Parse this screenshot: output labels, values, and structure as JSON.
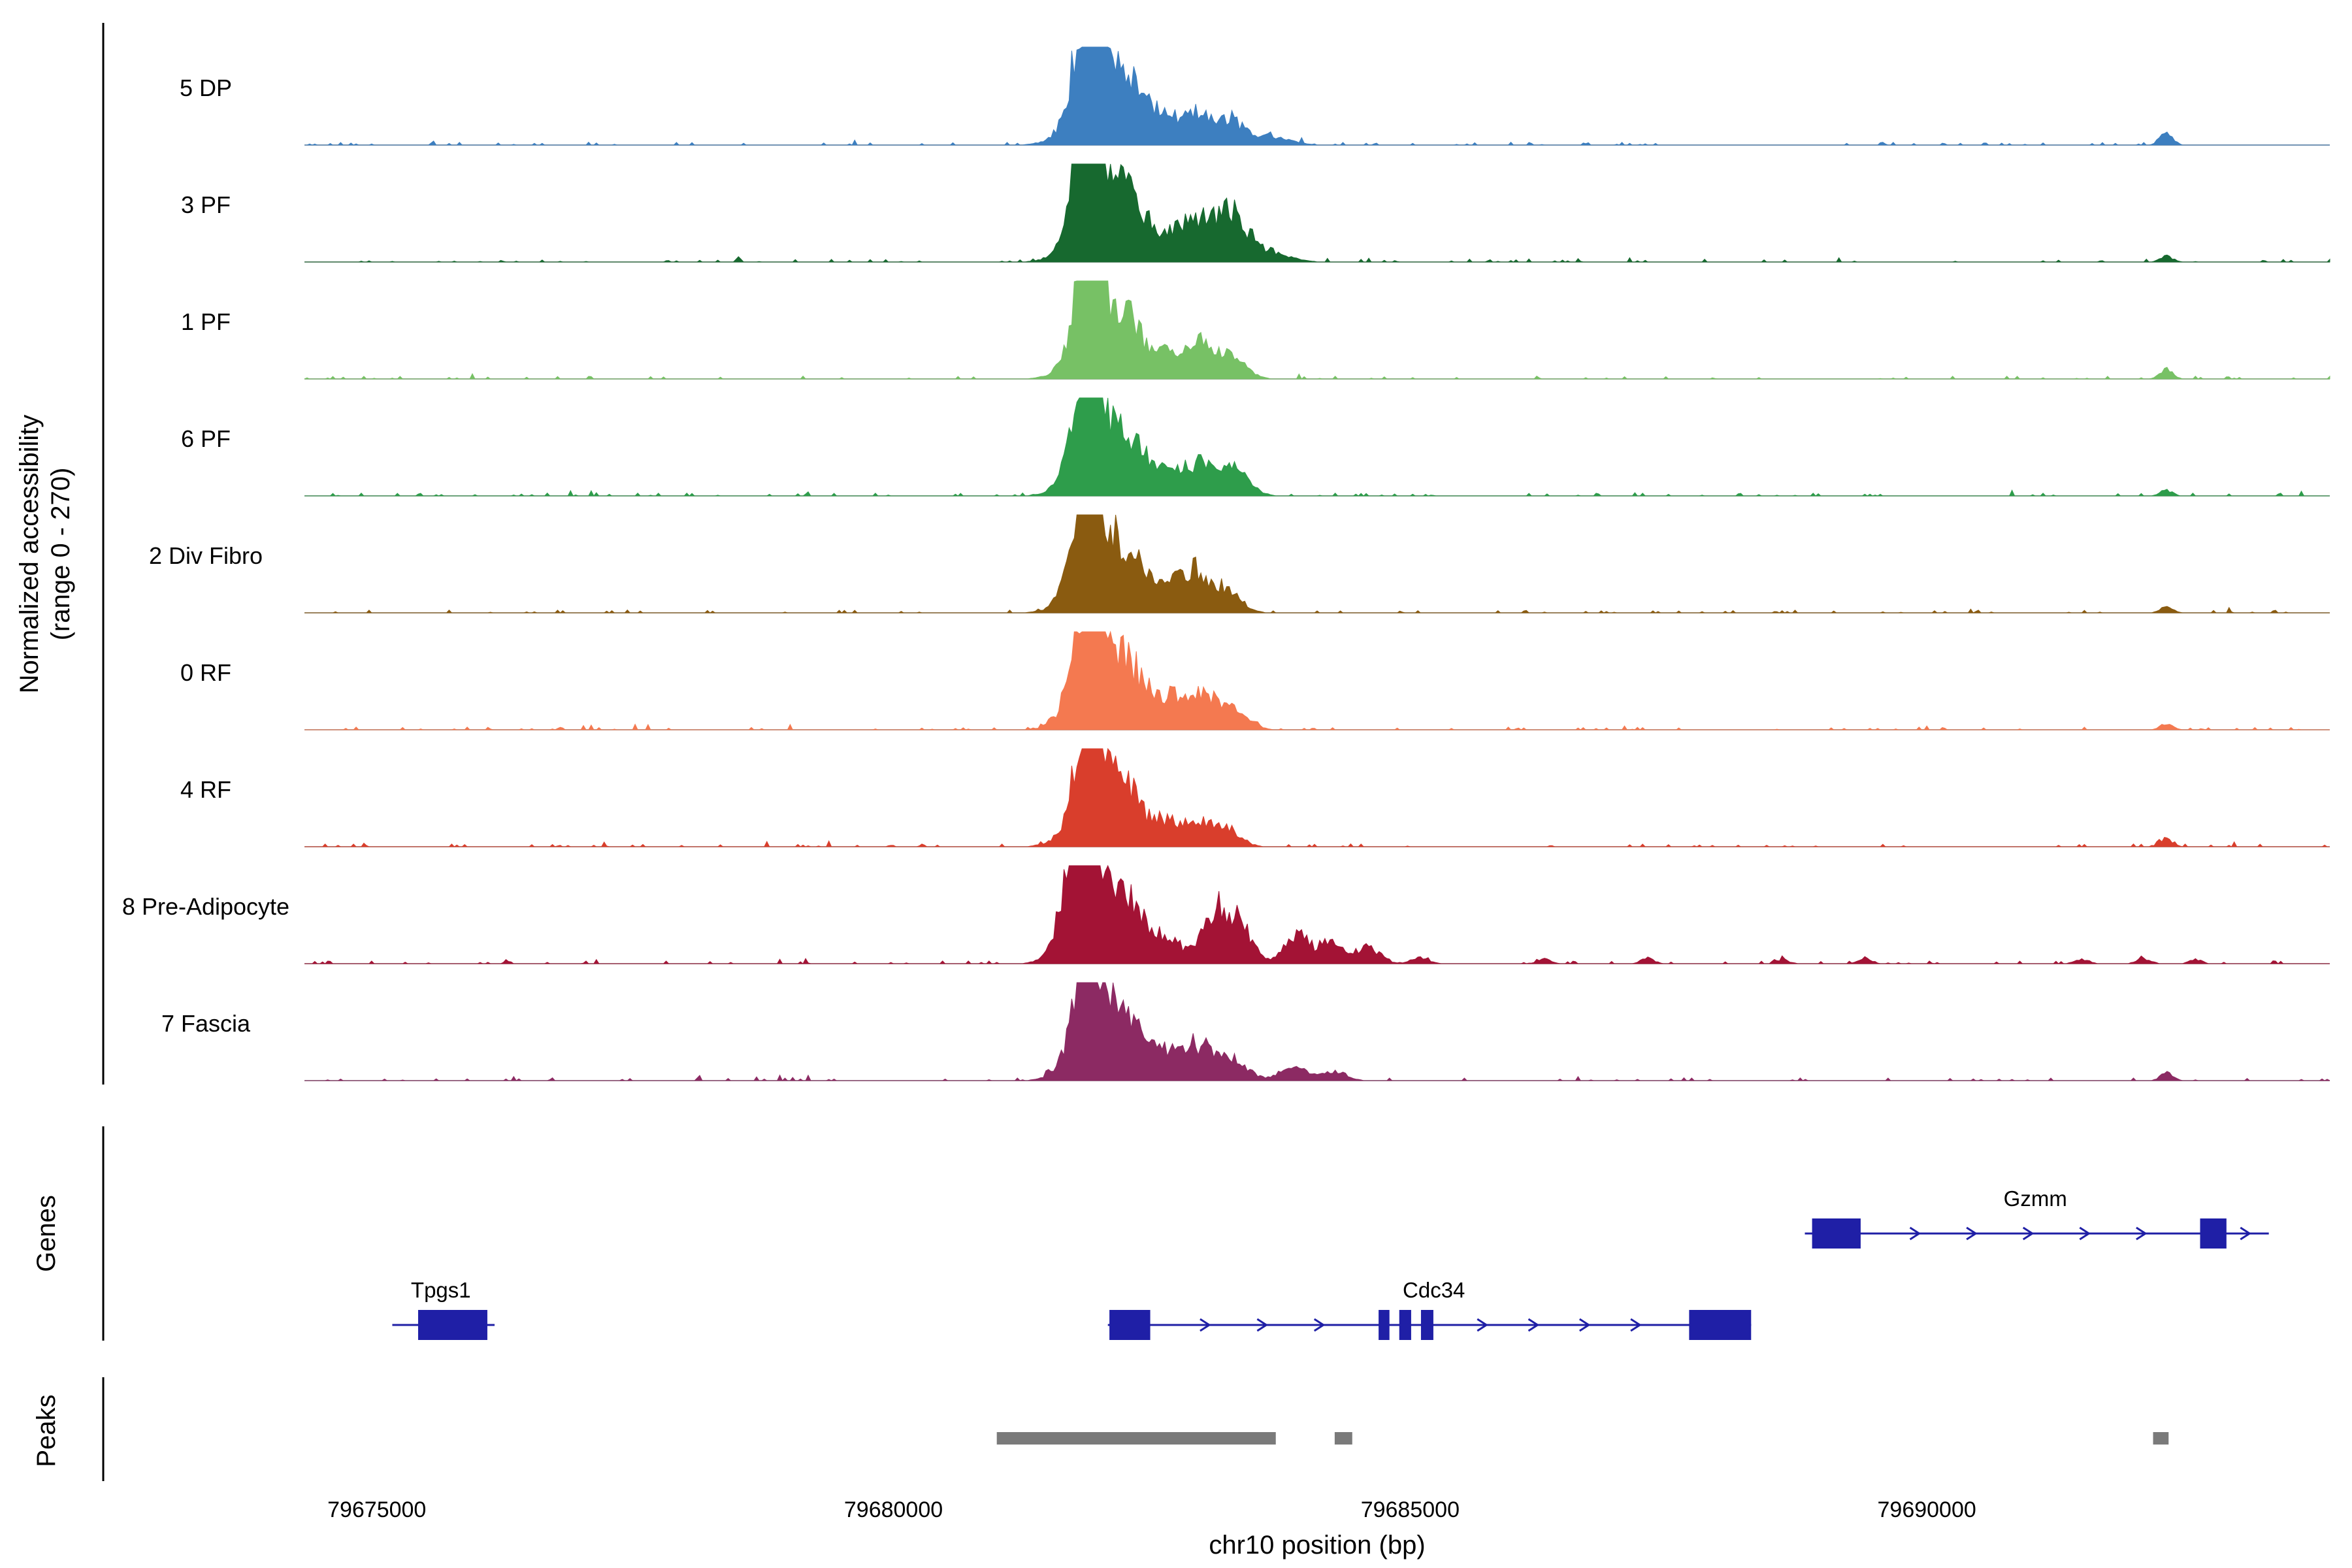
{
  "labels": {
    "y_axis_line1": "Normalized accessibility",
    "y_axis_line2": "(range 0 - 270)",
    "genes_section": "Genes",
    "peaks_section": "Peaks",
    "x_axis_title": "chr10 position (bp)"
  },
  "colors": {
    "gene": "#1f1fa6",
    "peak": "#7a7a7a",
    "baseline": "#a9a9a9"
  },
  "chart_data": {
    "type": "area",
    "title": "",
    "ylabel": "Normalized accessibility (range 0 - 270)",
    "xlabel": "chr10 position (bp)",
    "region": {
      "chrom": "chr10",
      "start": 79674300,
      "end": 79693900
    },
    "signal_range": [
      0,
      270
    ],
    "x_ticks": [
      79675000,
      79680000,
      79685000,
      79690000
    ],
    "tracks": [
      {
        "label": "5 DP",
        "color": "#3d7fc0",
        "peaks": [
          [
            79681870,
            110,
            285
          ],
          [
            79681990,
            230,
            190
          ],
          [
            79682280,
            140,
            100
          ],
          [
            79682600,
            160,
            75
          ],
          [
            79682950,
            130,
            88
          ],
          [
            79683250,
            130,
            60
          ],
          [
            79683600,
            200,
            25
          ],
          [
            79692320,
            60,
            34
          ]
        ]
      },
      {
        "label": "3 PF",
        "color": "#17692f",
        "peaks": [
          [
            79681860,
            115,
            280
          ],
          [
            79682010,
            230,
            185
          ],
          [
            79682300,
            140,
            95
          ],
          [
            79682650,
            160,
            80
          ],
          [
            79682980,
            140,
            110
          ],
          [
            79683280,
            140,
            120
          ],
          [
            79683600,
            200,
            30
          ],
          [
            79692320,
            60,
            16
          ]
        ]
      },
      {
        "label": "1 PF",
        "color": "#77c165",
        "peaks": [
          [
            79681880,
            110,
            275
          ],
          [
            79682000,
            220,
            180
          ],
          [
            79682300,
            140,
            90
          ],
          [
            79682650,
            160,
            70
          ],
          [
            79683000,
            140,
            95
          ],
          [
            79683300,
            130,
            55
          ],
          [
            79692320,
            60,
            30
          ]
        ]
      },
      {
        "label": "6 PF",
        "color": "#2e9d4b",
        "peaks": [
          [
            79681870,
            115,
            278
          ],
          [
            79682000,
            225,
            182
          ],
          [
            79682300,
            140,
            92
          ],
          [
            79682650,
            160,
            72
          ],
          [
            79683000,
            140,
            85
          ],
          [
            79683320,
            130,
            75
          ],
          [
            79692320,
            60,
            14
          ]
        ]
      },
      {
        "label": "2 Div Fibro",
        "color": "#8a5b10",
        "peaks": [
          [
            79681860,
            115,
            285
          ],
          [
            79682000,
            225,
            190
          ],
          [
            79682300,
            140,
            95
          ],
          [
            79682650,
            160,
            70
          ],
          [
            79682950,
            140,
            105
          ],
          [
            79683250,
            130,
            55
          ],
          [
            79692320,
            60,
            16
          ]
        ]
      },
      {
        "label": "0 RF",
        "color": "#f47950",
        "peaks": [
          [
            79681870,
            120,
            280
          ],
          [
            79682010,
            230,
            188
          ],
          [
            79682320,
            150,
            100
          ],
          [
            79682680,
            160,
            85
          ],
          [
            79683000,
            140,
            90
          ],
          [
            79683300,
            130,
            60
          ],
          [
            79692320,
            60,
            16
          ]
        ]
      },
      {
        "label": "4 RF",
        "color": "#d93e2c",
        "peaks": [
          [
            79681880,
            110,
            278
          ],
          [
            79681990,
            220,
            180
          ],
          [
            79682280,
            140,
            88
          ],
          [
            79682620,
            150,
            65
          ],
          [
            79682950,
            130,
            72
          ],
          [
            79683250,
            120,
            45
          ],
          [
            79692320,
            60,
            22
          ]
        ]
      },
      {
        "label": "8 Pre-Adipocyte",
        "color": "#a31335",
        "peaks": [
          [
            79681800,
            140,
            280
          ],
          [
            79681990,
            230,
            200
          ],
          [
            79682300,
            150,
            100
          ],
          [
            79682650,
            150,
            70
          ],
          [
            79683120,
            120,
            150
          ],
          [
            79683360,
            110,
            110
          ],
          [
            79683900,
            120,
            80
          ],
          [
            79684250,
            120,
            60
          ],
          [
            79684600,
            110,
            45
          ],
          [
            79685100,
            80,
            18
          ],
          [
            79686300,
            60,
            14
          ],
          [
            79687300,
            60,
            16
          ],
          [
            79688600,
            60,
            12
          ],
          [
            79689400,
            60,
            16
          ],
          [
            79691500,
            70,
            12
          ],
          [
            79692100,
            70,
            14
          ],
          [
            79692600,
            60,
            12
          ]
        ]
      },
      {
        "label": "7 Fascia",
        "color": "#8c2a63",
        "peaks": [
          [
            79681870,
            115,
            275
          ],
          [
            79682000,
            225,
            182
          ],
          [
            79682300,
            140,
            90
          ],
          [
            79682650,
            160,
            75
          ],
          [
            79682980,
            140,
            88
          ],
          [
            79683300,
            130,
            55
          ],
          [
            79683900,
            150,
            35
          ],
          [
            79684300,
            100,
            25
          ],
          [
            79692320,
            60,
            22
          ]
        ]
      }
    ],
    "genes": [
      {
        "name": "Gzmm",
        "row": 0,
        "strand": "+",
        "start": 79688820,
        "end": 79693310,
        "exons": [
          [
            79688890,
            79689360
          ],
          [
            79692645,
            79692900
          ]
        ],
        "label_bp": 79691050
      },
      {
        "name": "Tpgs1",
        "row": 1,
        "strand": "-",
        "start": 79675150,
        "end": 79676140,
        "exons": [
          [
            79675400,
            79676070
          ]
        ],
        "label_bp": 79675620
      },
      {
        "name": "Cdc34",
        "row": 1,
        "strand": "+",
        "start": 79682075,
        "end": 79688300,
        "exons": [
          [
            79682090,
            79682485
          ],
          [
            79684695,
            79684800
          ],
          [
            79684895,
            79685010
          ],
          [
            79685105,
            79685225
          ],
          [
            79687700,
            79688300
          ]
        ],
        "label_bp": 79685230
      }
    ],
    "peaks": [
      [
        79681000,
        79683700
      ],
      [
        79684270,
        79684440
      ],
      [
        79692190,
        79692340
      ]
    ]
  }
}
